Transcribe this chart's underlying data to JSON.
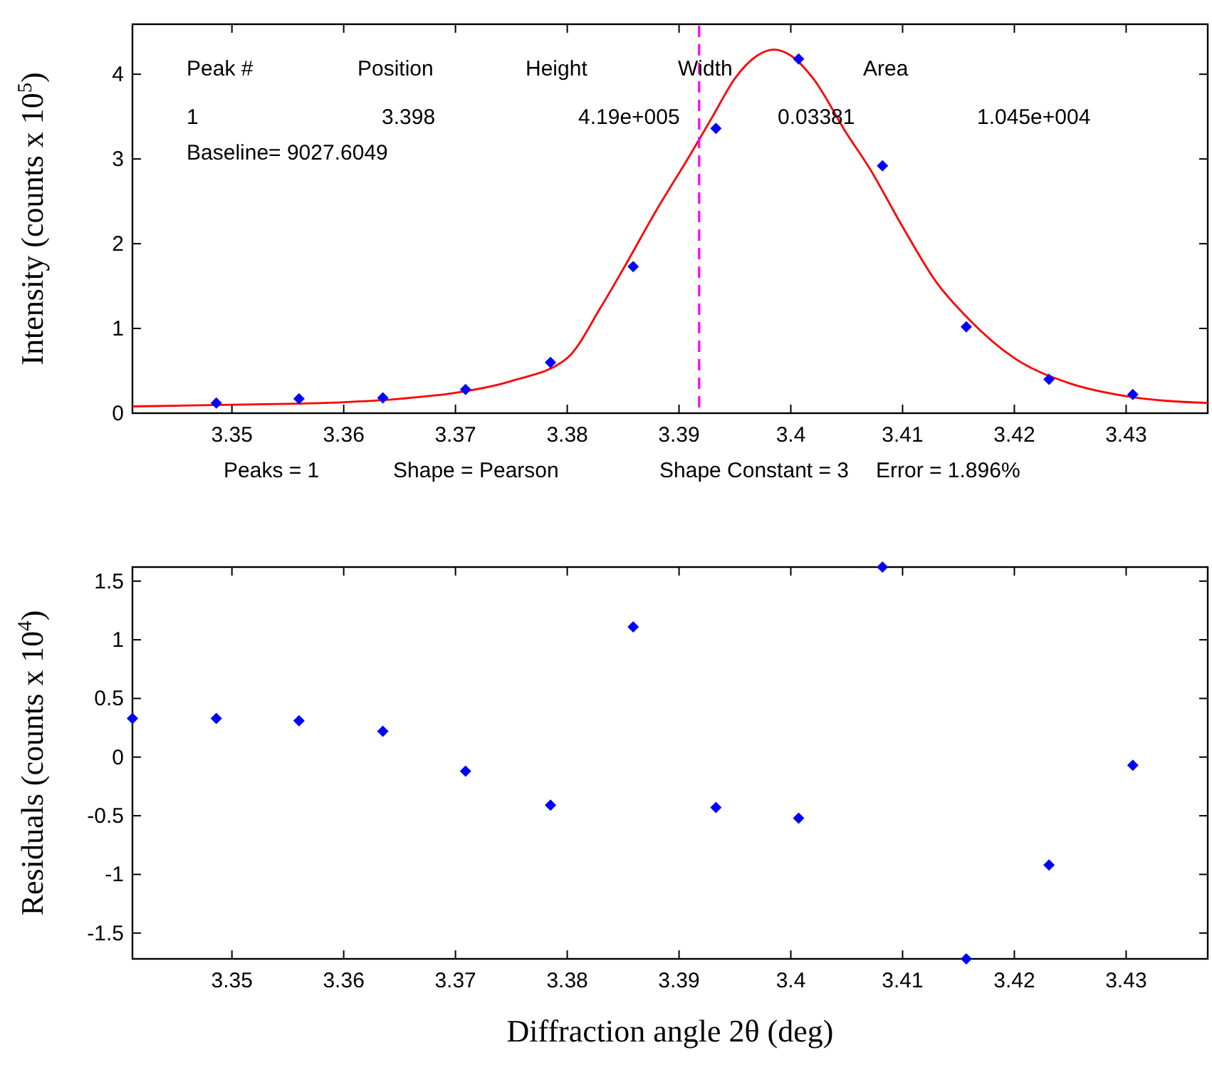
{
  "chart_data": [
    {
      "type": "scatter",
      "ylabel": "Intensity (counts x 10$^{5}$)",
      "xlim": [
        3.3411,
        3.4373
      ],
      "ylim": [
        0,
        4.59
      ],
      "xticks": [
        3.35,
        3.36,
        3.37,
        3.38,
        3.39,
        3.4,
        3.41,
        3.42,
        3.43
      ],
      "yticks": [
        0,
        1,
        2,
        3,
        4
      ],
      "grid": false,
      "series": [
        {
          "type": "line",
          "color": "#ff0000",
          "x": [
            3.3411,
            3.35,
            3.36,
            3.365,
            3.37,
            3.375,
            3.38,
            3.383,
            3.385,
            3.388,
            3.391,
            3.393,
            3.395,
            3.397,
            3.3985,
            3.4,
            3.402,
            3.405,
            3.407,
            3.41,
            3.413,
            3.416,
            3.42,
            3.425,
            3.43,
            3.4373
          ],
          "values": [
            0.08,
            0.1,
            0.13,
            0.17,
            0.24,
            0.38,
            0.65,
            1.25,
            1.7,
            2.4,
            3.05,
            3.5,
            3.95,
            4.22,
            4.29,
            4.22,
            3.95,
            3.3,
            2.9,
            2.2,
            1.55,
            1.1,
            0.65,
            0.35,
            0.2,
            0.12
          ]
        },
        {
          "marker": "diamond",
          "color": "#0000ff",
          "x": [
            3.3486,
            3.356,
            3.3635,
            3.3709,
            3.3785,
            3.3859,
            3.3933,
            3.4007,
            3.4082,
            3.4157,
            3.4231,
            3.4306
          ],
          "values": [
            0.12,
            0.17,
            0.18,
            0.28,
            0.6,
            1.73,
            3.36,
            4.18,
            2.92,
            1.02,
            0.4,
            0.22
          ]
        }
      ],
      "ref_lines": [
        {
          "axis": "x",
          "value": 3.3918,
          "color": "#ff00ff",
          "line_style": "dashed"
        }
      ],
      "annotations": [
        "Peak #",
        "Position",
        "Height",
        "Width",
        "Area",
        "1",
        "3.398",
        "4.19e+005",
        "0.03381",
        "1.045e+004",
        "Baseline= 9027.6049",
        "Peaks = 1",
        "Shape = Pearson",
        "Shape Constant = 3",
        "Error = 1.896%"
      ]
    },
    {
      "type": "scatter",
      "xlabel": "Diffraction angle 2θ (deg)",
      "ylabel": "Residuals (counts x 10$^{4}$)",
      "xlim": [
        3.3411,
        3.4373
      ],
      "ylim": [
        -1.72,
        1.62
      ],
      "xticks": [
        3.35,
        3.36,
        3.37,
        3.38,
        3.39,
        3.4,
        3.41,
        3.42,
        3.43
      ],
      "yticks": [
        -1.5,
        -1,
        -0.5,
        0,
        0.5,
        1,
        1.5
      ],
      "grid": false,
      "series": [
        {
          "marker": "diamond",
          "color": "#0000ff",
          "x": [
            3.3411,
            3.3486,
            3.356,
            3.3635,
            3.3709,
            3.3785,
            3.3859,
            3.3933,
            3.4007,
            3.4082,
            3.4157,
            3.4231,
            3.4306
          ],
          "values": [
            0.33,
            0.33,
            0.31,
            0.22,
            -0.12,
            -0.41,
            1.11,
            -0.43,
            -0.52,
            1.62,
            -1.72,
            -0.92,
            -0.07
          ]
        }
      ]
    }
  ]
}
